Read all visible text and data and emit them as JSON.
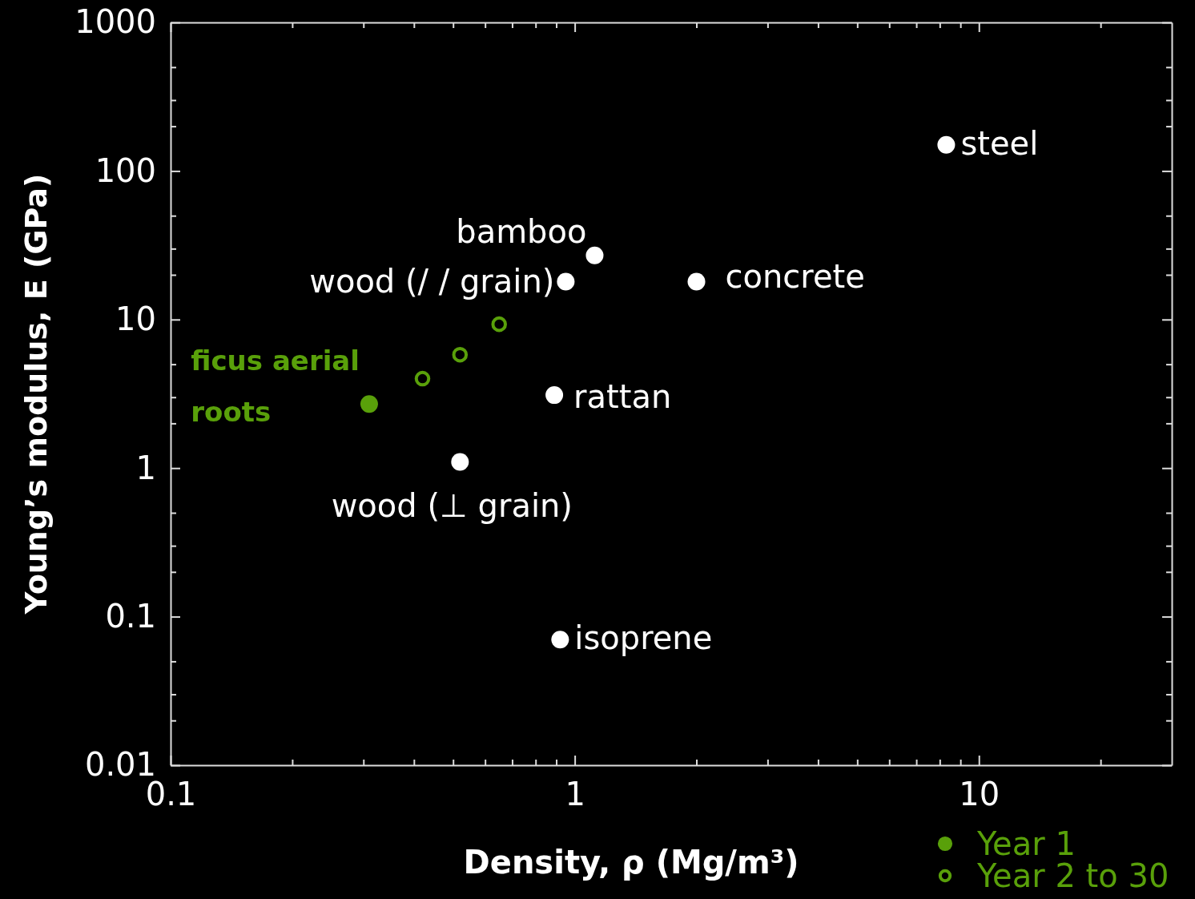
{
  "chart_data": {
    "type": "scatter",
    "xlabel": "Density, ρ (Mg/m³)",
    "ylabel": "Young’s  modulus, E (GPa)",
    "log": "xy",
    "grid": false,
    "legend": "bottom right",
    "xlim": [
      0.1,
      30
    ],
    "ylim": [
      0.01,
      1000
    ],
    "xticks": [
      0.1,
      {
        "value": 0.2,
        "label": null
      },
      {
        "value": 0.3,
        "label": null
      },
      {
        "value": 0.4,
        "label": null
      },
      {
        "value": 0.5,
        "label": null
      },
      {
        "value": 0.6,
        "label": null
      },
      {
        "value": 0.7,
        "label": null
      },
      {
        "value": 0.8,
        "label": null
      },
      {
        "value": 0.9,
        "label": null
      },
      1,
      {
        "value": 2,
        "label": null
      },
      {
        "value": 3,
        "label": null
      },
      {
        "value": 4,
        "label": null
      },
      {
        "value": 5,
        "label": null
      },
      {
        "value": 6,
        "label": null
      },
      {
        "value": 7,
        "label": null
      },
      {
        "value": 8,
        "label": null
      },
      {
        "value": 9,
        "label": null
      },
      10,
      {
        "value": 20,
        "label": null
      }
    ],
    "yticks": [
      0.01,
      {
        "value": 0.02,
        "label": null
      },
      {
        "value": 0.03,
        "label": null
      },
      {
        "value": 0.05,
        "label": null
      },
      0.1,
      {
        "value": 0.2,
        "label": null
      },
      {
        "value": 0.3,
        "label": null
      },
      {
        "value": 0.5,
        "label": null
      },
      1,
      {
        "value": 2,
        "label": null
      },
      {
        "value": 3,
        "label": null
      },
      {
        "value": 5,
        "label": null
      },
      10,
      {
        "value": 20,
        "label": null
      },
      {
        "value": 30,
        "label": null
      },
      {
        "value": 50,
        "label": null
      },
      100,
      {
        "value": 200,
        "label": null
      },
      {
        "value": 300,
        "label": null
      },
      {
        "value": 500,
        "label": null
      },
      1000
    ],
    "series": [
      {
        "color": "#ffffff",
        "marker": "circle",
        "x": [
          8.3,
          1.12,
          0.95,
          2.0,
          0.89,
          0.52,
          0.92
        ],
        "values": [
          150,
          27,
          18,
          18,
          3.1,
          1.1,
          0.07
        ]
      },
      {
        "name": "Year 1",
        "color": "#59a00a",
        "marker": "circle",
        "x": [
          0.31
        ],
        "values": [
          2.7
        ]
      },
      {
        "name": "Year 2 to 30",
        "color": "#59a00a",
        "marker": "circle-open",
        "x": [
          0.42,
          0.52,
          0.65
        ],
        "values": [
          4.0,
          5.8,
          9.3
        ]
      }
    ],
    "annotations": [
      {
        "text": "steel",
        "x": 8.3,
        "y": 150
      },
      {
        "text": "bamboo",
        "x": 1.12,
        "y": 27
      },
      {
        "text": "wood (/ / grain)",
        "x": 0.95,
        "y": 18
      },
      {
        "text": "concrete",
        "x": 2.0,
        "y": 18
      },
      {
        "text": "rattan",
        "x": 0.89,
        "y": 3.1
      },
      {
        "text": "wood (⊥ grain)",
        "x": 0.52,
        "y": 1.1
      },
      {
        "text": "isoprene",
        "x": 0.92,
        "y": 0.07
      },
      {
        "text": "ficus aerial roots",
        "x": 0.31,
        "y": 2.7
      }
    ]
  }
}
